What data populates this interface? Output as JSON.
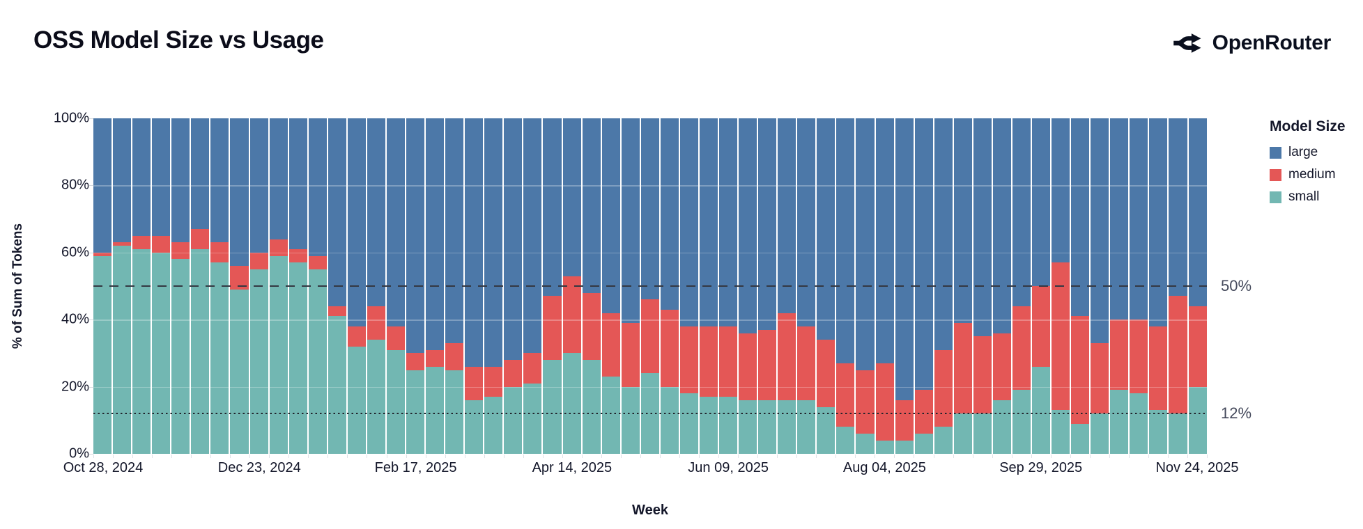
{
  "header": {
    "title": "OSS Model Size vs Usage",
    "brand": "OpenRouter"
  },
  "chart_data": {
    "type": "bar",
    "stacked": true,
    "normalized_percent": true,
    "title": "OSS Model Size vs Usage",
    "xlabel": "Week",
    "ylabel": "% of Sum of Tokens",
    "ylim": [
      0,
      100
    ],
    "grid": true,
    "y_ticks": [
      "100%",
      "80%",
      "60%",
      "40%",
      "20%",
      "0%"
    ],
    "x_tick_labels": [
      "Oct 28, 2024",
      "Dec 23, 2024",
      "Feb 17, 2025",
      "Apr 14, 2025",
      "Jun 09, 2025",
      "Aug 04, 2025",
      "Sep 29, 2025",
      "Nov 24, 2025"
    ],
    "x_tick_indices": [
      0,
      8,
      16,
      24,
      32,
      40,
      48,
      56
    ],
    "categories": [
      "Oct 28, 2024",
      "Nov 04, 2024",
      "Nov 11, 2024",
      "Nov 18, 2024",
      "Nov 25, 2024",
      "Dec 02, 2024",
      "Dec 09, 2024",
      "Dec 16, 2024",
      "Dec 23, 2024",
      "Dec 30, 2024",
      "Jan 06, 2025",
      "Jan 13, 2025",
      "Jan 20, 2025",
      "Jan 27, 2025",
      "Feb 03, 2025",
      "Feb 10, 2025",
      "Feb 17, 2025",
      "Feb 24, 2025",
      "Mar 03, 2025",
      "Mar 10, 2025",
      "Mar 17, 2025",
      "Mar 24, 2025",
      "Mar 31, 2025",
      "Apr 07, 2025",
      "Apr 14, 2025",
      "Apr 21, 2025",
      "Apr 28, 2025",
      "May 05, 2025",
      "May 12, 2025",
      "May 19, 2025",
      "May 26, 2025",
      "Jun 02, 2025",
      "Jun 09, 2025",
      "Jun 16, 2025",
      "Jun 23, 2025",
      "Jun 30, 2025",
      "Jul 07, 2025",
      "Jul 14, 2025",
      "Jul 21, 2025",
      "Jul 28, 2025",
      "Aug 04, 2025",
      "Aug 11, 2025",
      "Aug 18, 2025",
      "Aug 25, 2025",
      "Sep 01, 2025",
      "Sep 08, 2025",
      "Sep 15, 2025",
      "Sep 22, 2025",
      "Sep 29, 2025",
      "Oct 06, 2025",
      "Oct 13, 2025",
      "Oct 20, 2025",
      "Oct 27, 2025",
      "Nov 03, 2025",
      "Nov 10, 2025",
      "Nov 17, 2025",
      "Nov 24, 2025"
    ],
    "stack_bottom_to_top": [
      "small",
      "medium",
      "large"
    ],
    "series": [
      {
        "name": "large",
        "color": "#4C78A8",
        "values": [
          40,
          37,
          35,
          35,
          37,
          33,
          37,
          44,
          40,
          36,
          39,
          41,
          56,
          62,
          56,
          62,
          70,
          69,
          67,
          74,
          74,
          72,
          70,
          53,
          47,
          52,
          58,
          61,
          54,
          57,
          62,
          62,
          62,
          64,
          63,
          58,
          62,
          66,
          73,
          75,
          73,
          84,
          81,
          69,
          61,
          65,
          64,
          56,
          50,
          43,
          59,
          67,
          60,
          60,
          62,
          53,
          56
        ]
      },
      {
        "name": "medium",
        "color": "#E45756",
        "values": [
          1,
          1,
          4,
          5,
          5,
          6,
          6,
          7,
          5,
          5,
          4,
          4,
          3,
          6,
          10,
          7,
          5,
          5,
          8,
          10,
          9,
          8,
          9,
          19,
          23,
          20,
          19,
          19,
          22,
          23,
          20,
          21,
          21,
          20,
          21,
          26,
          22,
          20,
          19,
          19,
          23,
          12,
          13,
          23,
          27,
          23,
          20,
          25,
          24,
          44,
          32,
          21,
          21,
          22,
          25,
          35,
          24
        ]
      },
      {
        "name": "small",
        "color": "#72B7B2",
        "values": [
          59,
          62,
          61,
          60,
          58,
          61,
          57,
          49,
          55,
          59,
          57,
          55,
          41,
          32,
          34,
          31,
          25,
          26,
          25,
          16,
          17,
          20,
          21,
          28,
          30,
          28,
          23,
          20,
          24,
          20,
          18,
          17,
          17,
          16,
          16,
          16,
          16,
          14,
          8,
          6,
          4,
          4,
          6,
          8,
          12,
          12,
          16,
          19,
          26,
          13,
          9,
          12,
          19,
          18,
          13,
          12,
          20
        ]
      }
    ],
    "reference_lines": [
      {
        "label": "50%",
        "value": 50,
        "style": "dashed"
      },
      {
        "label": "12%",
        "value": 12,
        "style": "dotted"
      }
    ],
    "legend": {
      "title": "Model Size",
      "position": "right",
      "items": [
        "large",
        "medium",
        "small"
      ]
    }
  }
}
